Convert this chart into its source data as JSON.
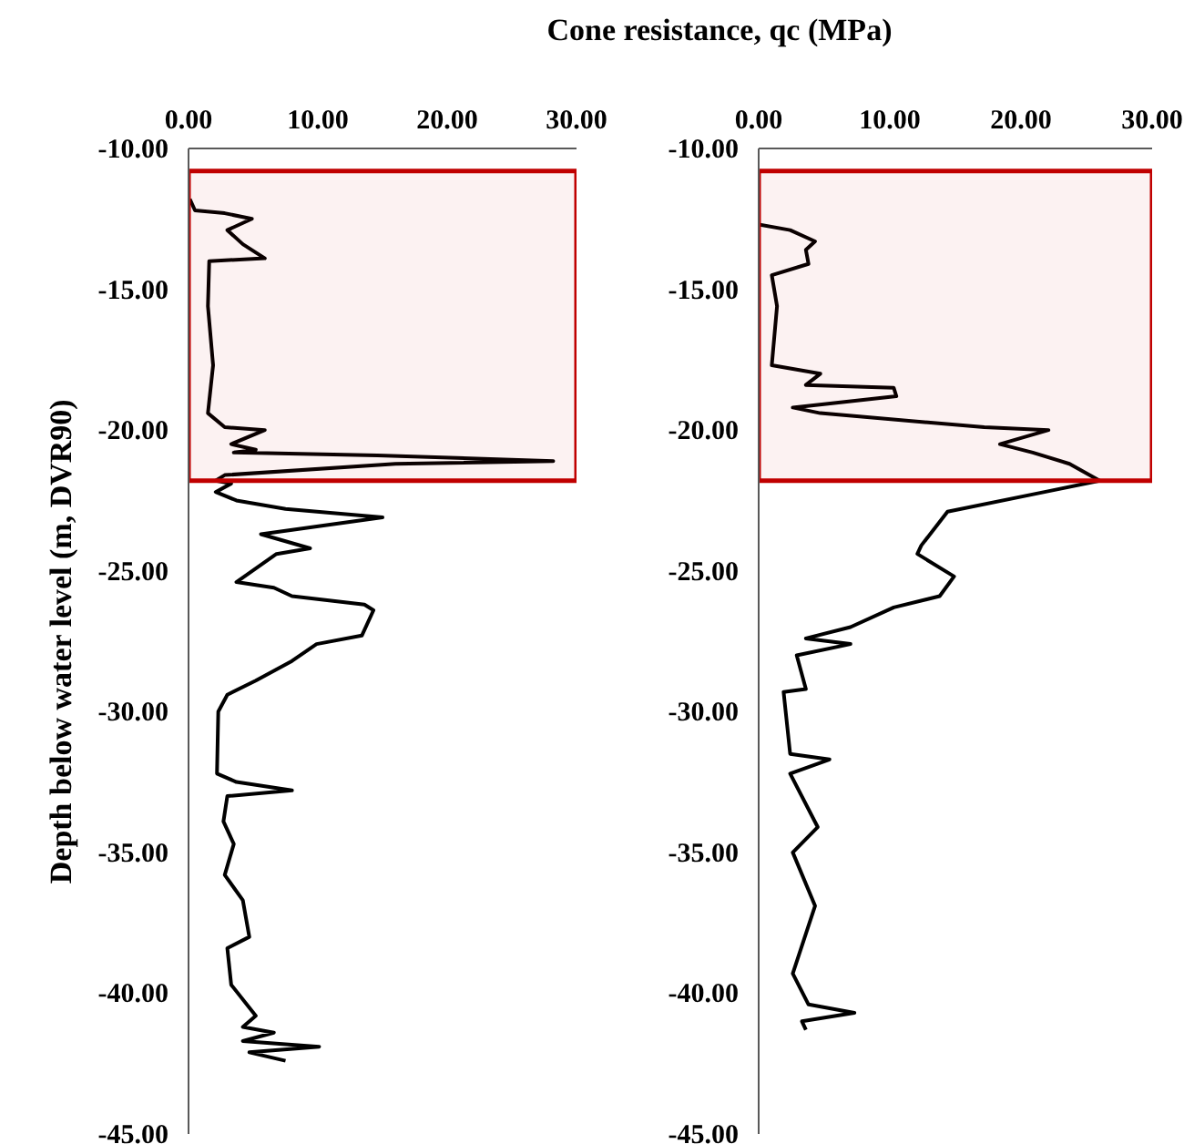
{
  "chart_data": [
    {
      "type": "line",
      "xlabel": "Cone resistance, qc (MPa)",
      "ylabel": "Depth below water level (m, DVR90)",
      "xlim": [
        0,
        30
      ],
      "xticks": [
        {
          "value": 0,
          "label": "0.00"
        },
        {
          "value": 10,
          "label": "10.00"
        },
        {
          "value": 20,
          "label": "20.00"
        },
        {
          "value": 30,
          "label": "30.00"
        }
      ],
      "ylim": [
        -45,
        -10
      ],
      "yticks": [
        {
          "value": -10,
          "label": "-10.00"
        },
        {
          "value": -15,
          "label": "-15.00"
        },
        {
          "value": -20,
          "label": "-20.00"
        },
        {
          "value": -25,
          "label": "-25.00"
        },
        {
          "value": -30,
          "label": "-30.00"
        },
        {
          "value": -35,
          "label": "-35.00"
        },
        {
          "value": -40,
          "label": "-40.00"
        },
        {
          "value": -45,
          "label": "-45.00"
        }
      ],
      "bands": [
        {
          "axis": "y",
          "from": -10.8,
          "to": -21.8,
          "color": "#c00000"
        }
      ],
      "series": [
        {
          "color": "#000000",
          "x": [
            0.1,
            0.5,
            2.8,
            4.9,
            3.0,
            4.2,
            5.9,
            1.6,
            1.5,
            1.9,
            1.5,
            2.8,
            5.9,
            3.3,
            5.2,
            3.5,
            14.6,
            28.2,
            16.0,
            2.8,
            2.1,
            3.3,
            2.1,
            3.7,
            7.5,
            15.0,
            5.6,
            9.4,
            6.8,
            3.7,
            6.6,
            8.0,
            13.6,
            14.3,
            13.4,
            9.9,
            8.0,
            5.2,
            3.0,
            2.3,
            2.2,
            3.7,
            8.0,
            3.0,
            2.7,
            3.5,
            2.8,
            4.2,
            4.7,
            3.0,
            3.3,
            5.2,
            4.2,
            6.6,
            4.2,
            10.1,
            4.7,
            7.5
          ],
          "values": [
            -11.8,
            -12.2,
            -12.3,
            -12.5,
            -12.9,
            -13.4,
            -13.9,
            -14.0,
            -15.6,
            -17.7,
            -19.4,
            -19.9,
            -20.0,
            -20.5,
            -20.7,
            -20.8,
            -20.9,
            -21.1,
            -21.2,
            -21.6,
            -21.8,
            -21.9,
            -22.2,
            -22.5,
            -22.8,
            -23.1,
            -23.7,
            -24.2,
            -24.4,
            -25.4,
            -25.6,
            -25.9,
            -26.2,
            -26.4,
            -27.3,
            -27.6,
            -28.2,
            -28.9,
            -29.4,
            -30.0,
            -32.2,
            -32.5,
            -32.8,
            -33.0,
            -33.9,
            -34.7,
            -35.8,
            -36.7,
            -38.0,
            -38.4,
            -39.7,
            -40.8,
            -41.2,
            -41.4,
            -41.7,
            -41.9,
            -42.1,
            -42.4
          ]
        }
      ]
    },
    {
      "type": "line",
      "xlim": [
        0,
        30
      ],
      "xticks": [
        {
          "value": 0,
          "label": "0.00"
        },
        {
          "value": 10,
          "label": "10.00"
        },
        {
          "value": 20,
          "label": "20.00"
        },
        {
          "value": 30,
          "label": "30.00"
        }
      ],
      "ylim": [
        -45,
        -10
      ],
      "yticks": [
        {
          "value": -10,
          "label": "-10.00"
        },
        {
          "value": -15,
          "label": "-15.00"
        },
        {
          "value": -20,
          "label": "-20.00"
        },
        {
          "value": -25,
          "label": "-25.00"
        },
        {
          "value": -30,
          "label": "-30.00"
        },
        {
          "value": -35,
          "label": "-35.00"
        },
        {
          "value": -40,
          "label": "-40.00"
        },
        {
          "value": -45,
          "label": "-45.00"
        }
      ],
      "bands": [
        {
          "axis": "y",
          "from": -10.8,
          "to": -21.8,
          "color": "#c00000"
        }
      ],
      "series": [
        {
          "color": "#000000",
          "x": [
            0.0,
            2.4,
            4.3,
            3.6,
            3.8,
            1.0,
            1.4,
            1.0,
            4.7,
            3.6,
            10.3,
            10.5,
            2.6,
            4.7,
            17.2,
            22.1,
            18.4,
            20.9,
            23.7,
            26.0,
            21.8,
            14.4,
            12.4,
            12.1,
            14.9,
            13.8,
            10.3,
            7.0,
            3.6,
            7.0,
            2.9,
            3.6,
            1.9,
            2.4,
            5.4,
            2.4,
            4.5,
            2.6,
            4.3,
            2.6,
            3.8,
            7.3,
            3.3,
            3.6
          ],
          "values": [
            -12.7,
            -12.9,
            -13.3,
            -13.6,
            -14.1,
            -14.5,
            -15.6,
            -17.7,
            -18.0,
            -18.4,
            -18.5,
            -18.8,
            -19.2,
            -19.4,
            -19.9,
            -20.0,
            -20.5,
            -20.8,
            -21.2,
            -21.8,
            -22.2,
            -22.9,
            -24.1,
            -24.4,
            -25.2,
            -25.9,
            -26.3,
            -27.0,
            -27.4,
            -27.6,
            -28.0,
            -29.2,
            -29.3,
            -31.5,
            -31.7,
            -32.2,
            -34.1,
            -35.0,
            -36.9,
            -39.3,
            -40.4,
            -40.7,
            -41.0,
            -41.3
          ]
        }
      ]
    }
  ]
}
